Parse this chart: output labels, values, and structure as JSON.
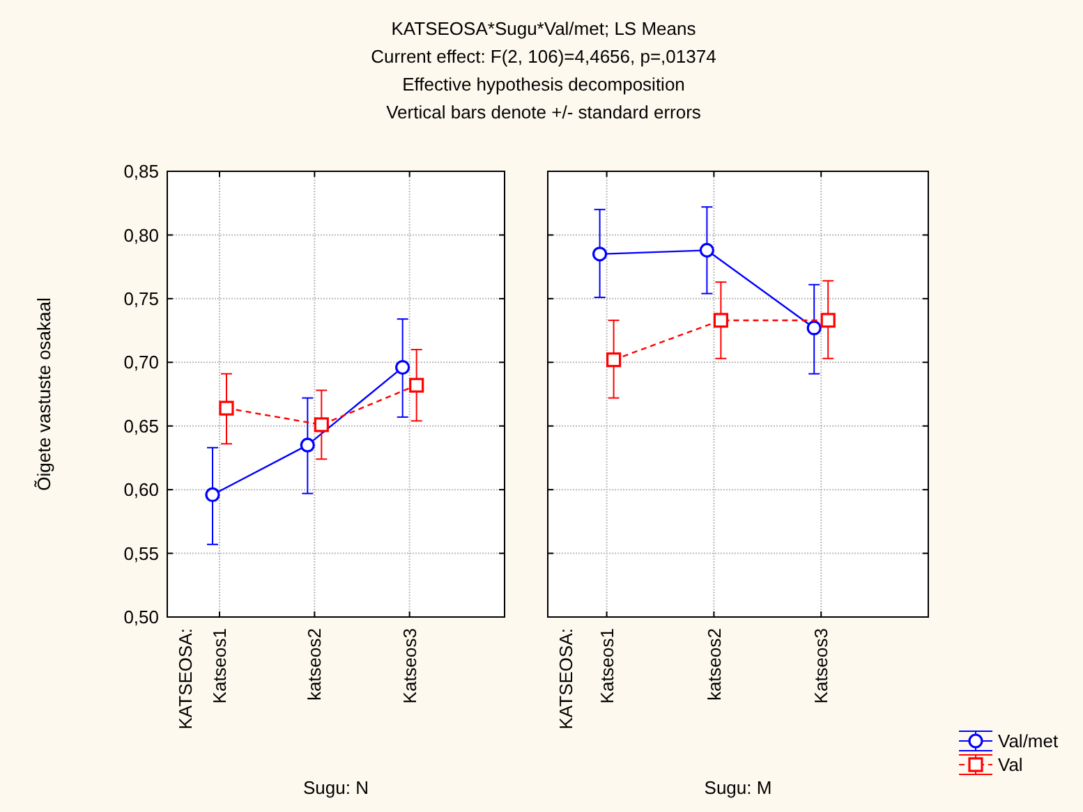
{
  "chart_data": [
    {
      "type": "line",
      "title": "KATSEOSA*Sugu*Val/met; LS Means",
      "subtitle": "Current effect: F(2, 106)=4,4656, p=,01374",
      "annotations": [
        "Effective hypothesis decomposition",
        "Vertical bars denote +/- standard errors",
        "KATSEOSA:"
      ],
      "xlabel": "Sugu: N",
      "ylabel": "Õigete vastuste osakaal",
      "categories": [
        "Katseos1",
        "katseos2",
        "Katseos3"
      ],
      "ylim": [
        0.5,
        0.85
      ],
      "yticks": [
        {
          "value": 0.5,
          "label": "0,50"
        },
        {
          "value": 0.55,
          "label": "0,55"
        },
        {
          "value": 0.6,
          "label": "0,60"
        },
        {
          "value": 0.65,
          "label": "0,65"
        },
        {
          "value": 0.7,
          "label": "0,70"
        },
        {
          "value": 0.75,
          "label": "0,75"
        },
        {
          "value": 0.8,
          "label": "0,80"
        },
        {
          "value": 0.85,
          "label": "0,85"
        }
      ],
      "grid": true,
      "legend": "bottom right",
      "series": [
        {
          "name": "Val/met",
          "color": "#0000ff",
          "marker": "circle",
          "line_style": "solid",
          "values": [
            0.596,
            0.635,
            0.696
          ],
          "errors": [
            [
              0.557,
              0.633
            ],
            [
              0.597,
              0.672
            ],
            [
              0.657,
              0.734
            ]
          ]
        },
        {
          "name": "Val",
          "color": "#ff0000",
          "marker": "square",
          "line_style": "dashed",
          "values": [
            0.664,
            0.651,
            0.682
          ],
          "errors": [
            [
              0.636,
              0.691
            ],
            [
              0.624,
              0.678
            ],
            [
              0.654,
              0.71
            ]
          ]
        }
      ]
    },
    {
      "type": "line",
      "annotations": [
        "KATSEOSA:"
      ],
      "xlabel": "Sugu: M",
      "categories": [
        "Katseos1",
        "katseos2",
        "Katseos3"
      ],
      "ylim": [
        0.5,
        0.85
      ],
      "yticks": [
        0.5,
        0.55,
        0.6,
        0.65,
        0.7,
        0.75,
        0.8,
        0.85
      ],
      "tick_labels": "x",
      "grid": true,
      "series": [
        {
          "color": "#0000ff",
          "marker": "circle",
          "line_style": "solid",
          "values": [
            0.785,
            0.788,
            0.727
          ],
          "errors": [
            [
              0.751,
              0.82
            ],
            [
              0.754,
              0.822
            ],
            [
              0.691,
              0.761
            ]
          ]
        },
        {
          "color": "#ff0000",
          "marker": "square",
          "line_style": "dashed",
          "values": [
            0.702,
            0.733,
            0.733
          ],
          "errors": [
            [
              0.672,
              0.733
            ],
            [
              0.703,
              0.763
            ],
            [
              0.703,
              0.764
            ]
          ]
        }
      ]
    }
  ]
}
